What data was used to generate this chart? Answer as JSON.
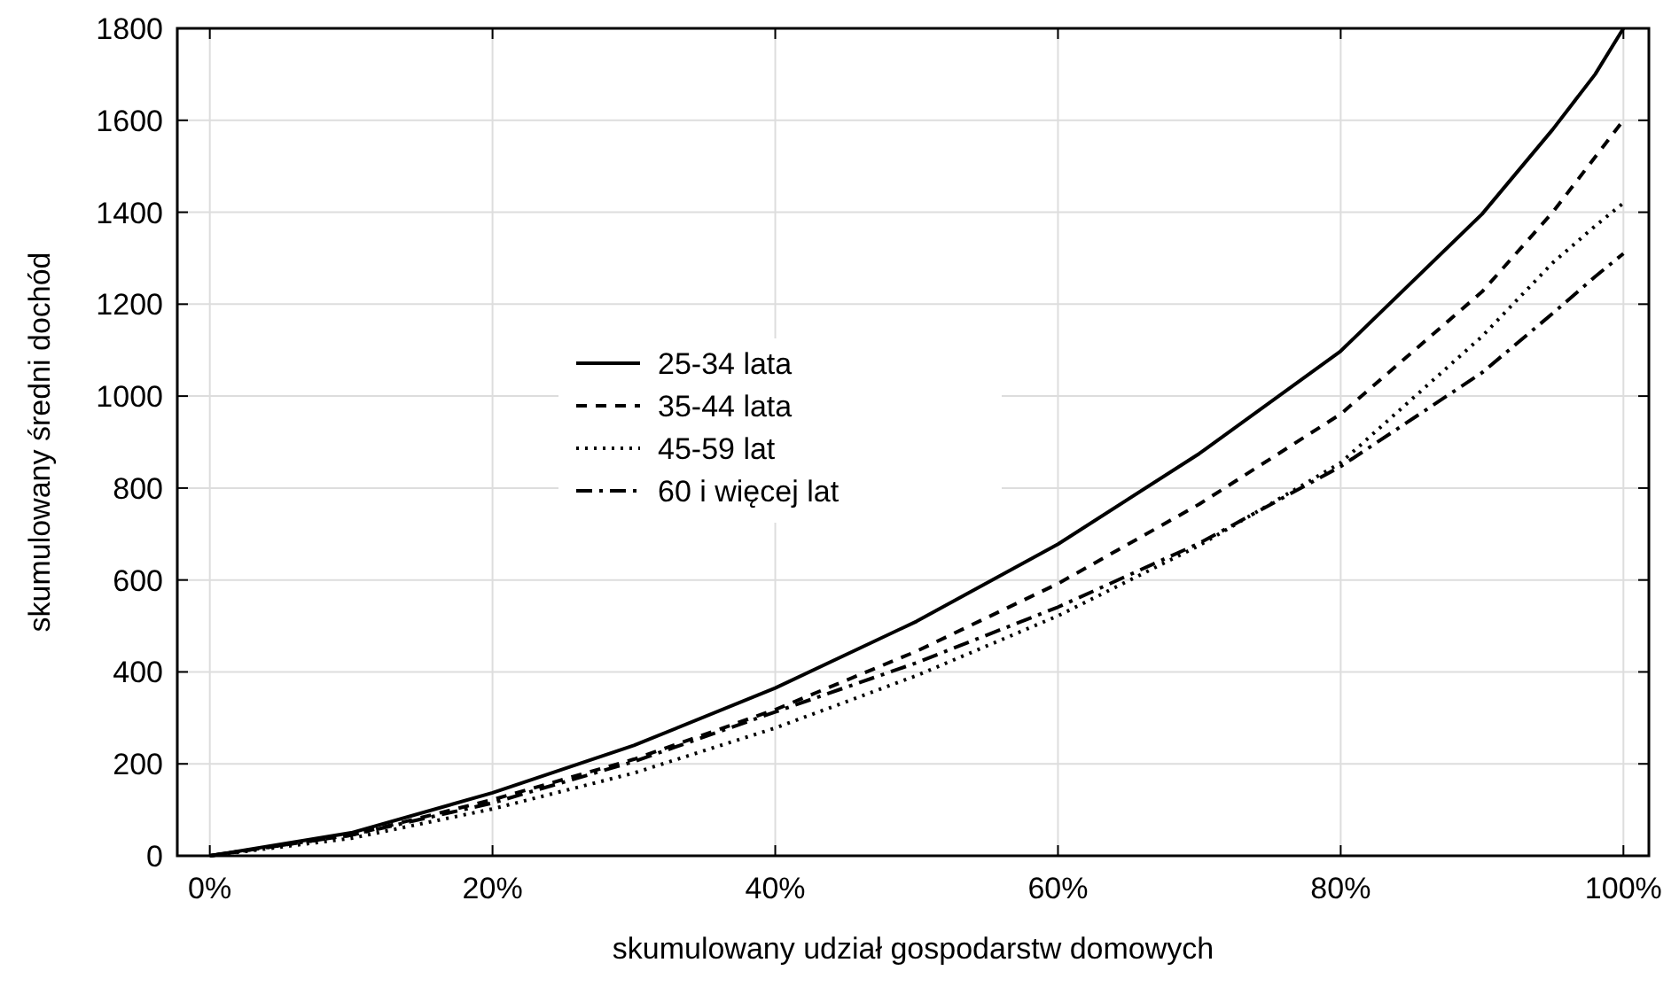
{
  "chart_data": {
    "type": "line",
    "xlabel": "skumulowany udział gospodarstw domowych",
    "ylabel": "skumulowany średni dochód",
    "x": [
      0,
      10,
      20,
      30,
      40,
      50,
      60,
      70,
      80,
      90,
      95,
      98,
      100
    ],
    "series": [
      {
        "name": "25-34 lata",
        "color": "#000000",
        "line_style": "solid",
        "values": [
          0,
          50,
          137,
          240,
          365,
          510,
          678,
          875,
          1098,
          1396,
          1580,
          1700,
          1800
        ]
      },
      {
        "name": "35-44 lata",
        "color": "#000000",
        "line_style": "dashed",
        "values": [
          0,
          45,
          122,
          210,
          318,
          445,
          592,
          765,
          961,
          1227,
          1400,
          1520,
          1600
        ]
      },
      {
        "name": "45-59 lat",
        "color": "#000000",
        "line_style": "dotted",
        "values": [
          0,
          38,
          102,
          180,
          278,
          392,
          522,
          675,
          855,
          1130,
          1290,
          1370,
          1420
        ]
      },
      {
        "name": "60 i więcej lat",
        "color": "#000000",
        "line_style": "dashdot",
        "values": [
          0,
          45,
          115,
          205,
          313,
          420,
          541,
          680,
          847,
          1051,
          1180,
          1260,
          1310
        ]
      }
    ],
    "xlim": [
      -2.3,
      101.8
    ],
    "xticks": [
      {
        "value": 0,
        "label": "0%"
      },
      {
        "value": 20,
        "label": "20%"
      },
      {
        "value": 40,
        "label": "40%"
      },
      {
        "value": 60,
        "label": "60%"
      },
      {
        "value": 80,
        "label": "80%"
      },
      {
        "value": 100,
        "label": "100%"
      }
    ],
    "ylim": [
      0,
      1800
    ],
    "yticks": [
      0,
      200,
      400,
      600,
      800,
      1000,
      1200,
      1400,
      1600,
      1800
    ],
    "grid": true,
    "legend": "center"
  }
}
